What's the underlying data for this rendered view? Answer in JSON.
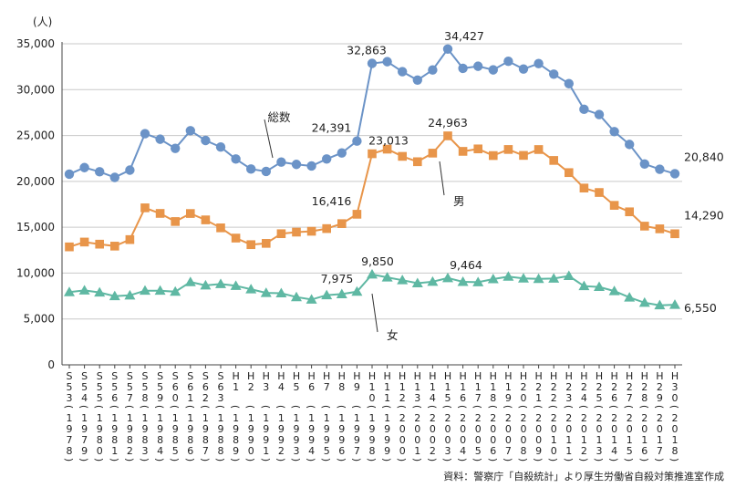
{
  "chart_data": {
    "type": "line",
    "ylabel": "(人)",
    "ylim": [
      0,
      35000
    ],
    "yticks": [
      "0",
      "5,000",
      "10,000",
      "15,000",
      "20,000",
      "25,000",
      "30,000",
      "35,000"
    ],
    "grid": true,
    "categories": [
      {
        "era": "S53",
        "year": "1978"
      },
      {
        "era": "S54",
        "year": "1979"
      },
      {
        "era": "S55",
        "year": "1980"
      },
      {
        "era": "S56",
        "year": "1981"
      },
      {
        "era": "S57",
        "year": "1982"
      },
      {
        "era": "S58",
        "year": "1983"
      },
      {
        "era": "S59",
        "year": "1984"
      },
      {
        "era": "S60",
        "year": "1985"
      },
      {
        "era": "S61",
        "year": "1986"
      },
      {
        "era": "S62",
        "year": "1987"
      },
      {
        "era": "S63",
        "year": "1988"
      },
      {
        "era": "H1",
        "year": "1989"
      },
      {
        "era": "H2",
        "year": "1990"
      },
      {
        "era": "H3",
        "year": "1991"
      },
      {
        "era": "H4",
        "year": "1992"
      },
      {
        "era": "H5",
        "year": "1993"
      },
      {
        "era": "H6",
        "year": "1994"
      },
      {
        "era": "H7",
        "year": "1995"
      },
      {
        "era": "H8",
        "year": "1996"
      },
      {
        "era": "H9",
        "year": "1997"
      },
      {
        "era": "H10",
        "year": "1998"
      },
      {
        "era": "H11",
        "year": "1999"
      },
      {
        "era": "H12",
        "year": "2000"
      },
      {
        "era": "H13",
        "year": "2001"
      },
      {
        "era": "H14",
        "year": "2002"
      },
      {
        "era": "H15",
        "year": "2003"
      },
      {
        "era": "H16",
        "year": "2004"
      },
      {
        "era": "H17",
        "year": "2005"
      },
      {
        "era": "H18",
        "year": "2006"
      },
      {
        "era": "H19",
        "year": "2007"
      },
      {
        "era": "H20",
        "year": "2008"
      },
      {
        "era": "H21",
        "year": "2009"
      },
      {
        "era": "H22",
        "year": "2010"
      },
      {
        "era": "H23",
        "year": "2011"
      },
      {
        "era": "H24",
        "year": "2012"
      },
      {
        "era": "H25",
        "year": "2013"
      },
      {
        "era": "H26",
        "year": "2014"
      },
      {
        "era": "H27",
        "year": "2015"
      },
      {
        "era": "H28",
        "year": "2016"
      },
      {
        "era": "H29",
        "year": "2017"
      },
      {
        "era": "H30",
        "year": "2018"
      }
    ],
    "series": [
      {
        "name": "総数",
        "color": "#6b93c7",
        "marker": "circle",
        "values": [
          20788,
          21503,
          21048,
          20434,
          21228,
          25202,
          24596,
          23599,
          25524,
          24460,
          23742,
          22436,
          21346,
          21084,
          22104,
          21851,
          21679,
          22445,
          23104,
          24391,
          32863,
          33048,
          31957,
          31042,
          32143,
          34427,
          32325,
          32552,
          32155,
          33093,
          32249,
          32845,
          31690,
          30651,
          27858,
          27283,
          25427,
          24025,
          21897,
          21321,
          20840
        ]
      },
      {
        "name": "男",
        "color": "#e8954a",
        "marker": "square",
        "values": [
          12859,
          13386,
          13155,
          12942,
          13654,
          17116,
          16508,
          15624,
          16497,
          15802,
          14934,
          13818,
          13102,
          13242,
          14296,
          14468,
          14560,
          14853,
          15393,
          16416,
          23013,
          23512,
          22727,
          22144,
          23080,
          24963,
          23272,
          23540,
          22813,
          23478,
          22831,
          23472,
          22283,
          20955,
          19273,
          18787,
          17386,
          16681,
          15121,
          14826,
          14290
        ]
      },
      {
        "name": "女",
        "color": "#5fb8a3",
        "marker": "triangle",
        "values": [
          7929,
          8117,
          7893,
          7492,
          7574,
          8086,
          8088,
          7975,
          9027,
          8658,
          8808,
          8618,
          8244,
          7842,
          7808,
          7383,
          7119,
          7592,
          7711,
          7975,
          9850,
          9536,
          9230,
          8898,
          9063,
          9464,
          9053,
          9012,
          9342,
          9615,
          9418,
          9373,
          9407,
          9696,
          8585,
          8496,
          8041,
          7344,
          6776,
          6495,
          6550
        ]
      }
    ],
    "annotations": [
      {
        "text": "32,863",
        "series": 0,
        "index": 20
      },
      {
        "text": "34,427",
        "series": 0,
        "index": 25
      },
      {
        "text": "24,391",
        "series": 0,
        "index": 19
      },
      {
        "text": "20,840",
        "series": 0,
        "index": 40
      },
      {
        "text": "23,013",
        "series": 1,
        "index": 20
      },
      {
        "text": "24,963",
        "series": 1,
        "index": 25
      },
      {
        "text": "16,416",
        "series": 1,
        "index": 19
      },
      {
        "text": "14,290",
        "series": 1,
        "index": 40
      },
      {
        "text": "9,850",
        "series": 2,
        "index": 20
      },
      {
        "text": "9,464",
        "series": 2,
        "index": 25
      },
      {
        "text": "7,975",
        "series": 2,
        "index": 19
      },
      {
        "text": "6,550",
        "series": 2,
        "index": 40
      }
    ],
    "series_labels": [
      {
        "text": "総数",
        "series": 0
      },
      {
        "text": "男",
        "series": 1
      },
      {
        "text": "女",
        "series": 2
      }
    ],
    "source": "資料：警察庁「自殺統計」より厚生労働省自殺対策推進室作成"
  }
}
